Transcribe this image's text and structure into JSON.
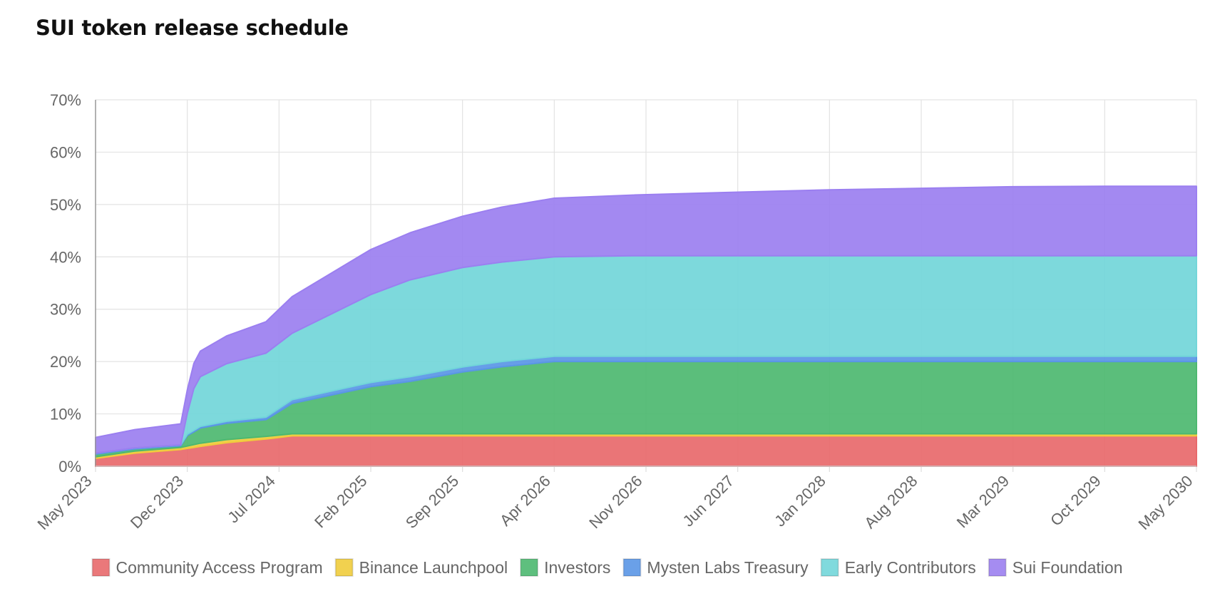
{
  "chart_data": {
    "type": "area",
    "stacked": true,
    "title": "SUI token release schedule",
    "xlabel": "",
    "ylabel": "",
    "ylim": [
      0,
      70
    ],
    "y_ticks": [
      "0%",
      "10%",
      "20%",
      "30%",
      "40%",
      "50%",
      "60%",
      "70%"
    ],
    "x_ticks": [
      "May 2023",
      "Dec 2023",
      "Jul 2024",
      "Feb 2025",
      "Sep 2025",
      "Apr 2026",
      "Nov 2026",
      "Jun 2027",
      "Jan 2028",
      "Aug 2028",
      "Mar 2029",
      "Oct 2029",
      "May 2030"
    ],
    "x_range_months": [
      0,
      84
    ],
    "grid": true,
    "legend_position": "bottom",
    "series": [
      {
        "name": "Community Access Program",
        "color": "#e8696b",
        "points": [
          [
            0,
            1.5
          ],
          [
            3,
            2.5
          ],
          [
            6.5,
            3.2
          ],
          [
            8,
            3.8
          ],
          [
            10,
            4.5
          ],
          [
            13,
            5.2
          ],
          [
            15,
            5.8
          ],
          [
            84,
            5.8
          ]
        ]
      },
      {
        "name": "Binance Launchpool",
        "color": "#f0cc3c",
        "points": [
          [
            0,
            0.3
          ],
          [
            3,
            0.4
          ],
          [
            6.5,
            0.4
          ],
          [
            8,
            0.6
          ],
          [
            10,
            0.6
          ],
          [
            13,
            0.5
          ],
          [
            15,
            0.4
          ],
          [
            84,
            0.4
          ]
        ]
      },
      {
        "name": "Investors",
        "color": "#4db870",
        "points": [
          [
            0,
            0.5
          ],
          [
            3,
            0.4
          ],
          [
            6.5,
            0.3
          ],
          [
            7,
            2.0
          ],
          [
            8,
            2.9
          ],
          [
            10,
            3.1
          ],
          [
            13,
            3.2
          ],
          [
            15,
            5.8
          ],
          [
            21,
            9.0
          ],
          [
            24,
            10.0
          ],
          [
            28,
            11.8
          ],
          [
            31,
            12.8
          ],
          [
            35,
            13.8
          ],
          [
            84,
            13.8
          ]
        ]
      },
      {
        "name": "Mysten Labs Treasury",
        "color": "#5a96e6",
        "points": [
          [
            0,
            0.2
          ],
          [
            6.5,
            0.2
          ],
          [
            8,
            0.3
          ],
          [
            10,
            0.4
          ],
          [
            13,
            0.5
          ],
          [
            15,
            0.7
          ],
          [
            21,
            0.8
          ],
          [
            24,
            0.9
          ],
          [
            31,
            1.0
          ],
          [
            35,
            1.0
          ],
          [
            84,
            1.0
          ]
        ]
      },
      {
        "name": "Early Contributors",
        "color": "#72d6d9",
        "points": [
          [
            0,
            0
          ],
          [
            6.5,
            0
          ],
          [
            7,
            4.0
          ],
          [
            7.5,
            8.0
          ],
          [
            8,
            9.5
          ],
          [
            10,
            11.0
          ],
          [
            13,
            12.2
          ],
          [
            15,
            12.7
          ],
          [
            21,
            16.8
          ],
          [
            24,
            18.5
          ],
          [
            28,
            19.0
          ],
          [
            31,
            19.0
          ],
          [
            35,
            19.0
          ],
          [
            41,
            19.2
          ],
          [
            84,
            19.2
          ]
        ]
      },
      {
        "name": "Sui Foundation",
        "color": "#9b7ff0",
        "points": [
          [
            0,
            3.0
          ],
          [
            3,
            3.5
          ],
          [
            6.5,
            4.0
          ],
          [
            7,
            4.5
          ],
          [
            7.5,
            4.8
          ],
          [
            8,
            4.9
          ],
          [
            10,
            5.3
          ],
          [
            13,
            6.0
          ],
          [
            15,
            7.0
          ],
          [
            21,
            8.6
          ],
          [
            24,
            9.0
          ],
          [
            28,
            9.8
          ],
          [
            31,
            10.5
          ],
          [
            35,
            11.2
          ],
          [
            41,
            11.6
          ],
          [
            48,
            12.1
          ],
          [
            56,
            12.6
          ],
          [
            63,
            12.9
          ],
          [
            70,
            13.2
          ],
          [
            77,
            13.3
          ],
          [
            84,
            13.3
          ]
        ]
      }
    ]
  }
}
